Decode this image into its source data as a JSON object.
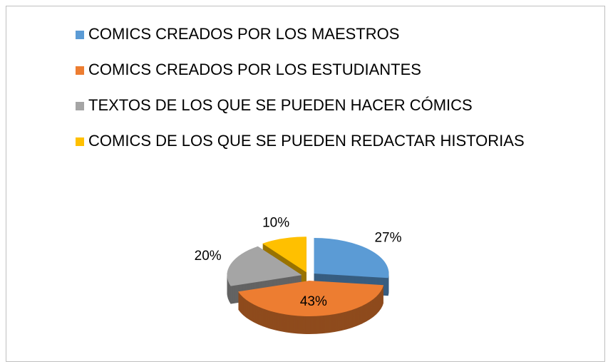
{
  "chart_data": {
    "type": "pie",
    "categories": [
      "COMICS CREADOS POR LOS MAESTROS",
      "COMICS CREADOS POR LOS ESTUDIANTES",
      "TEXTOS DE LOS QUE SE PUEDEN HACER CÓMICS",
      "COMICS DE LOS QUE SE PUEDEN REDACTAR HISTORIAS"
    ],
    "values": [
      27,
      43,
      20,
      10
    ],
    "value_labels": [
      "27%",
      "43%",
      "20%",
      "10%"
    ],
    "colors": [
      "#5b9bd5",
      "#ed7d31",
      "#a5a5a5",
      "#ffc000"
    ],
    "legend": "top"
  }
}
